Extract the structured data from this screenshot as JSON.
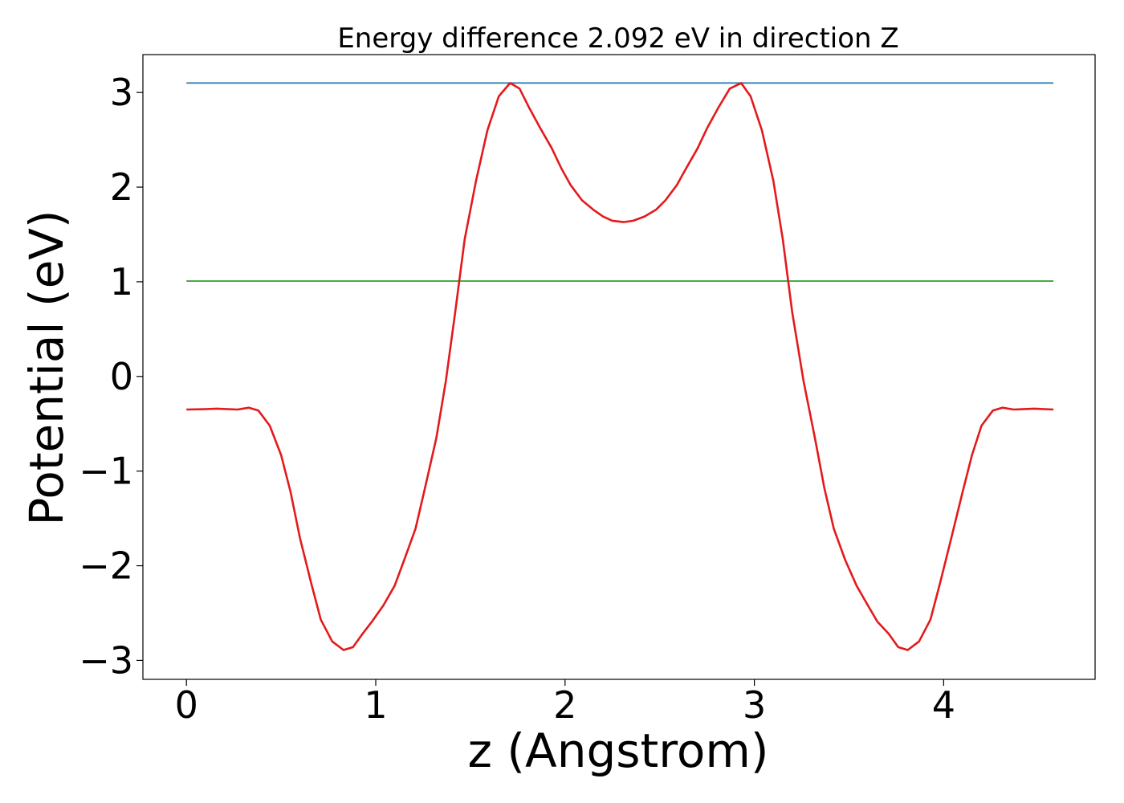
{
  "chart_data": {
    "type": "line",
    "title": "Energy difference 2.092 eV in direction Z",
    "xlabel": "z (Angstrom)",
    "ylabel": "Potential (eV)",
    "xlim": [
      -0.23,
      4.8
    ],
    "ylim": [
      -3.2,
      3.4
    ],
    "xticks": [
      0,
      1,
      2,
      3,
      4
    ],
    "xtick_labels": [
      "0",
      "1",
      "2",
      "3",
      "4"
    ],
    "yticks": [
      3,
      2,
      1,
      0,
      -1,
      -2,
      -3
    ],
    "ytick_labels": [
      "3",
      "2",
      "1",
      "0",
      "−1",
      "−2",
      "−3"
    ],
    "grid": false,
    "series": [
      {
        "color": "#1f77b4",
        "x": [
          0,
          4.58
        ],
        "y": [
          3.1,
          3.1
        ]
      },
      {
        "color": "#2ca02c",
        "x": [
          0,
          4.58
        ],
        "y": [
          1.008,
          1.008
        ]
      },
      {
        "color": "#e31a1c",
        "x": [
          0,
          0.1,
          0.16,
          0.27,
          0.33,
          0.38,
          0.44,
          0.5,
          0.55,
          0.6,
          0.66,
          0.71,
          0.77,
          0.83,
          0.88,
          0.93,
          0.98,
          1.04,
          1.1,
          1.15,
          1.21,
          1.26,
          1.32,
          1.37,
          1.42,
          1.47,
          1.53,
          1.59,
          1.65,
          1.71,
          1.76,
          1.81,
          1.87,
          1.93,
          1.98,
          2.03,
          2.09,
          2.15,
          2.2,
          2.25,
          2.31,
          2.36,
          2.42,
          2.48,
          2.53,
          2.59,
          2.64,
          2.7,
          2.75,
          2.81,
          2.87,
          2.93,
          2.98,
          3.04,
          3.1,
          3.15,
          3.2,
          3.26,
          3.32,
          3.37,
          3.42,
          3.48,
          3.54,
          3.6,
          3.65,
          3.71,
          3.76,
          3.81,
          3.87,
          3.93,
          3.98,
          4.04,
          4.1,
          4.15,
          4.2,
          4.26,
          4.31,
          4.37,
          4.48,
          4.58
        ],
        "y": [
          -0.35,
          -0.345,
          -0.34,
          -0.35,
          -0.33,
          -0.36,
          -0.52,
          -0.83,
          -1.22,
          -1.71,
          -2.19,
          -2.57,
          -2.8,
          -2.89,
          -2.86,
          -2.72,
          -2.59,
          -2.42,
          -2.21,
          -1.94,
          -1.61,
          -1.18,
          -0.65,
          -0.05,
          0.68,
          1.45,
          2.07,
          2.6,
          2.96,
          3.1,
          3.04,
          2.84,
          2.62,
          2.41,
          2.2,
          2.02,
          1.86,
          1.76,
          1.69,
          1.645,
          1.63,
          1.645,
          1.69,
          1.76,
          1.86,
          2.02,
          2.2,
          2.41,
          2.62,
          2.84,
          3.04,
          3.1,
          2.96,
          2.6,
          2.07,
          1.45,
          0.68,
          -0.05,
          -0.65,
          -1.18,
          -1.61,
          -1.94,
          -2.21,
          -2.42,
          -2.59,
          -2.72,
          -2.86,
          -2.89,
          -2.8,
          -2.57,
          -2.19,
          -1.71,
          -1.22,
          -0.83,
          -0.52,
          -0.36,
          -0.33,
          -0.35,
          -0.34,
          -0.35
        ]
      }
    ]
  }
}
